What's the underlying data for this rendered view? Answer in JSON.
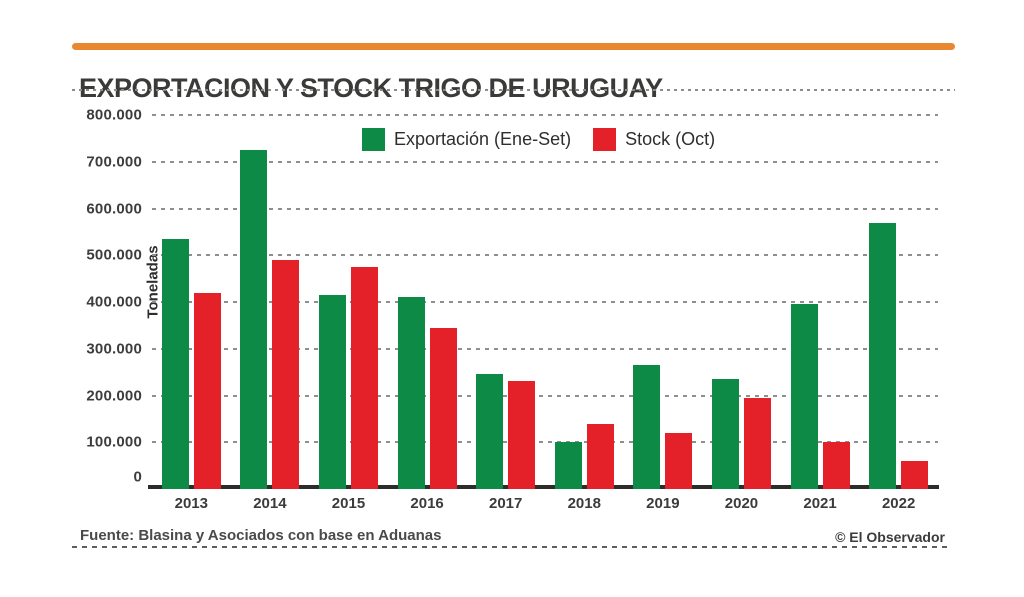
{
  "accent_color": "#E88932",
  "title": "EXPORTACION Y STOCK TRIGO DE URUGUAY",
  "footer": {
    "source": "Fuente: Blasina y Asociados con base en Aduanas",
    "credit": "© El Observador"
  },
  "chart_data": {
    "type": "bar",
    "title": "EXPORTACION Y STOCK TRIGO DE URUGUAY",
    "ylabel": "Toneladas",
    "xlabel": "",
    "categories": [
      "2013",
      "2014",
      "2015",
      "2016",
      "2017",
      "2018",
      "2019",
      "2020",
      "2021",
      "2022"
    ],
    "series": [
      {
        "name": "Exportación (Ene-Set)",
        "color": "#0E8A47",
        "values": [
          535000,
          725000,
          415000,
          410000,
          245000,
          100000,
          265000,
          235000,
          395000,
          570000
        ]
      },
      {
        "name": "Stock (Oct)",
        "color": "#E42128",
        "values": [
          420000,
          490000,
          475000,
          345000,
          230000,
          140000,
          120000,
          195000,
          100000,
          60000
        ]
      }
    ],
    "ylim": [
      0,
      800000
    ],
    "yticks": [
      0,
      100000,
      200000,
      300000,
      400000,
      500000,
      600000,
      700000,
      800000
    ],
    "ytick_labels": [
      "0",
      "100.000",
      "200.000",
      "300.000",
      "400.000",
      "500.000",
      "600.000",
      "700.000",
      "800.000"
    ],
    "grid": "horizontal-dashed",
    "legend_position": "top-center"
  }
}
